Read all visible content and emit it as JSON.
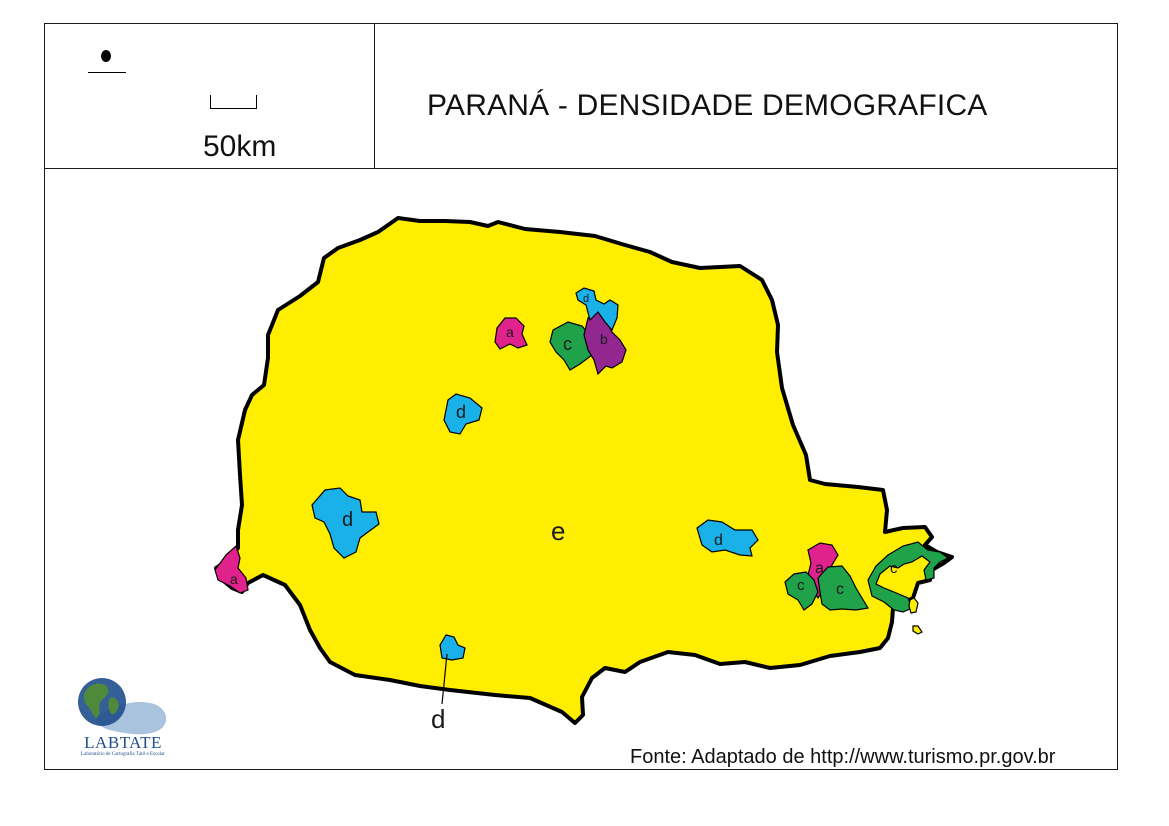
{
  "header": {
    "title": "PARANÁ - DENSIDADE DEMOGRAFICA",
    "scale_label": "50km"
  },
  "map": {
    "state_fill": "#ffee00",
    "outline_color": "#000000",
    "regions": [
      {
        "id": "e-main",
        "label": "e",
        "category": "e",
        "color": "#ffee00"
      },
      {
        "id": "a-north",
        "label": "a",
        "category": "a",
        "color": "#e0228c"
      },
      {
        "id": "a-west",
        "label": "a",
        "category": "a",
        "color": "#e0228c"
      },
      {
        "id": "a-east",
        "label": "a",
        "category": "a",
        "color": "#e0228c"
      },
      {
        "id": "b-north",
        "label": "b",
        "category": "b",
        "color": "#92278f"
      },
      {
        "id": "c-north",
        "label": "c",
        "category": "c",
        "color": "#1fa24a"
      },
      {
        "id": "c-east-1",
        "label": "c",
        "category": "c",
        "color": "#1fa24a"
      },
      {
        "id": "c-east-2",
        "label": "c",
        "category": "c",
        "color": "#1fa24a"
      },
      {
        "id": "c-coast",
        "label": "c",
        "category": "c",
        "color": "#1fa24a"
      },
      {
        "id": "d-north",
        "label": "d",
        "category": "d",
        "color": "#1ab0e8"
      },
      {
        "id": "d-center",
        "label": "d",
        "category": "d",
        "color": "#1ab0e8"
      },
      {
        "id": "d-west",
        "label": "d",
        "category": "d",
        "color": "#1ab0e8"
      },
      {
        "id": "d-east",
        "label": "d",
        "category": "d",
        "color": "#1ab0e8"
      },
      {
        "id": "d-south",
        "label": "d",
        "category": "d",
        "color": "#1ab0e8"
      }
    ]
  },
  "logo": {
    "name": "LABTATE",
    "tagline": "Laboratório de Cartografia Tátil e Escolar",
    "colors": {
      "blue": "#1f4e8c",
      "green": "#4f8a3b",
      "hand": "#9bb8d8"
    }
  },
  "footer": {
    "source": "Fonte: Adaptado de http://www.turismo.pr.gov.br"
  }
}
